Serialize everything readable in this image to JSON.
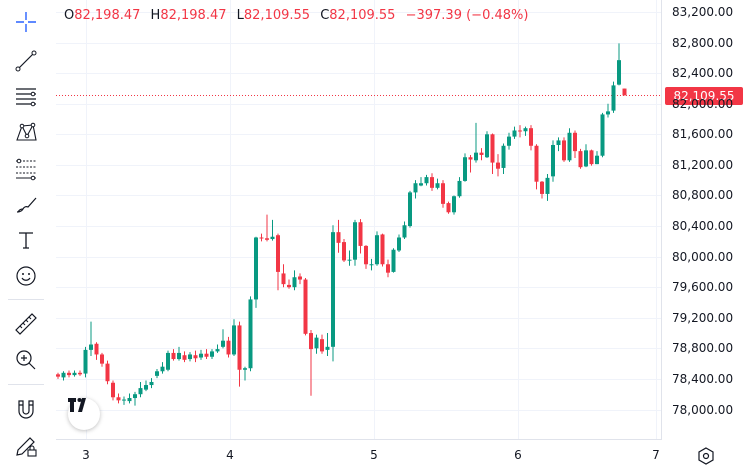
{
  "toolbar": {
    "tools": [
      {
        "name": "crosshair",
        "icon": "crosshair-icon"
      },
      {
        "name": "trend-line",
        "icon": "trend-line-icon"
      },
      {
        "name": "horizontal-lines",
        "icon": "horizontal-lines-icon"
      },
      {
        "name": "patterns",
        "icon": "pattern-icon"
      },
      {
        "name": "fib-retracement",
        "icon": "fib-retracement-icon"
      },
      {
        "name": "brush",
        "icon": "brush-icon"
      },
      {
        "name": "text",
        "icon": "text-icon"
      },
      {
        "name": "emoji",
        "icon": "smiley-icon"
      },
      {
        "name": "ruler",
        "icon": "ruler-icon"
      },
      {
        "name": "zoom-in",
        "icon": "zoom-in-icon"
      },
      {
        "name": "magnet",
        "icon": "magnet-icon"
      },
      {
        "name": "lock-drawing",
        "icon": "pencil-lock-icon"
      }
    ]
  },
  "legend": {
    "o_label": "O",
    "o_value": "82,198.47",
    "h_label": "H",
    "h_value": "82,198.47",
    "l_label": "L",
    "l_value": "82,109.55",
    "c_label": "C",
    "c_value": "82,109.55",
    "change": "−397.39 (−0.48%)"
  },
  "price_scale": {
    "ticks": [
      "83,200.00",
      "82,800.00",
      "82,400.00",
      "82,000.00",
      "81,600.00",
      "81,200.00",
      "80,800.00",
      "80,400.00",
      "80,000.00",
      "79,600.00",
      "79,200.00",
      "78,800.00",
      "78,400.00",
      "78,000.00"
    ],
    "last_price": "82,109.55"
  },
  "time_scale": {
    "ticks": [
      "3",
      "4",
      "5",
      "6",
      "7"
    ]
  },
  "colors": {
    "up": "#089981",
    "down": "#f23645",
    "grid": "#f0f3fa"
  },
  "chart_data": {
    "type": "candlestick",
    "y_range": [
      77800,
      83250
    ],
    "x_labels": [
      "3",
      "4",
      "5",
      "6",
      "7"
    ],
    "last_price": 82109.55,
    "candles": [
      [
        78460,
        78430,
        78480,
        78400
      ],
      [
        78420,
        78480,
        78500,
        78380
      ],
      [
        78480,
        78450,
        78510,
        78420
      ],
      [
        78450,
        78480,
        78510,
        78430
      ],
      [
        78480,
        78460,
        78510,
        78440
      ],
      [
        78470,
        78780,
        78820,
        78420
      ],
      [
        78780,
        78850,
        79150,
        78700
      ],
      [
        78860,
        78720,
        78880,
        78650
      ],
      [
        78720,
        78600,
        78740,
        78560
      ],
      [
        78600,
        78370,
        78640,
        78330
      ],
      [
        78350,
        78160,
        78380,
        78120
      ],
      [
        78160,
        78120,
        78210,
        78080
      ],
      [
        78120,
        78130,
        78170,
        78060
      ],
      [
        78110,
        78150,
        78210,
        78080
      ],
      [
        78150,
        78200,
        78230,
        78050
      ],
      [
        78200,
        78280,
        78360,
        78160
      ],
      [
        78260,
        78320,
        78380,
        78240
      ],
      [
        78320,
        78360,
        78410,
        78280
      ],
      [
        78440,
        78500,
        78530,
        78410
      ],
      [
        78500,
        78560,
        78620,
        78470
      ],
      [
        78520,
        78740,
        78770,
        78500
      ],
      [
        78740,
        78660,
        78790,
        78640
      ],
      [
        78660,
        78740,
        78820,
        78640
      ],
      [
        78710,
        78650,
        78760,
        78620
      ],
      [
        78660,
        78720,
        78750,
        78630
      ],
      [
        78710,
        78670,
        78770,
        78620
      ],
      [
        78680,
        78730,
        78780,
        78650
      ],
      [
        78730,
        78690,
        78790,
        78660
      ],
      [
        78690,
        78760,
        78790,
        78660
      ],
      [
        78760,
        78790,
        78850,
        78740
      ],
      [
        78820,
        78900,
        79050,
        78800
      ],
      [
        78900,
        78720,
        78950,
        78680
      ],
      [
        78720,
        79100,
        79180,
        78700
      ],
      [
        79100,
        78520,
        79150,
        78300
      ],
      [
        78520,
        78540,
        78560,
        78380
      ],
      [
        78540,
        79440,
        79480,
        78500
      ],
      [
        79440,
        80250,
        80260,
        79330
      ],
      [
        80250,
        80240,
        80300,
        80200
      ],
      [
        80240,
        80220,
        80550,
        80200
      ],
      [
        80230,
        80260,
        80480,
        80210
      ],
      [
        80280,
        79800,
        80300,
        79560
      ],
      [
        79780,
        79640,
        79900,
        79600
      ],
      [
        79630,
        79600,
        79700,
        79580
      ],
      [
        79600,
        79730,
        79820,
        79560
      ],
      [
        79740,
        79700,
        79780,
        79640
      ],
      [
        79700,
        78990,
        79720,
        78970
      ],
      [
        79000,
        78790,
        79040,
        78180
      ],
      [
        78800,
        78940,
        78980,
        78730
      ],
      [
        78920,
        78760,
        78980,
        78730
      ],
      [
        78780,
        78820,
        79000,
        78700
      ],
      [
        78820,
        80320,
        80410,
        78630
      ],
      [
        80320,
        80180,
        80480,
        80050
      ],
      [
        80190,
        79950,
        80230,
        79930
      ],
      [
        79950,
        79960,
        80080,
        79880
      ],
      [
        79960,
        80450,
        80480,
        79880
      ],
      [
        80450,
        80140,
        80490,
        80040
      ],
      [
        80140,
        79900,
        80150,
        79840
      ],
      [
        79890,
        79900,
        79970,
        79820
      ],
      [
        79900,
        80280,
        80330,
        79880
      ],
      [
        80290,
        79900,
        80300,
        79870
      ],
      [
        79900,
        79790,
        79960,
        79730
      ],
      [
        79800,
        80090,
        80110,
        79790
      ],
      [
        80080,
        80250,
        80290,
        80060
      ],
      [
        80250,
        80410,
        80460,
        80230
      ],
      [
        80400,
        80840,
        80860,
        80380
      ],
      [
        80840,
        80960,
        81000,
        80760
      ],
      [
        80930,
        80960,
        81040,
        80920
      ],
      [
        80960,
        81040,
        81070,
        80930
      ],
      [
        81040,
        80900,
        81090,
        80860
      ],
      [
        80900,
        80960,
        81020,
        80880
      ],
      [
        80960,
        80690,
        81000,
        80640
      ],
      [
        80700,
        80580,
        80720,
        80560
      ],
      [
        80580,
        80790,
        80800,
        80550
      ],
      [
        80790,
        80990,
        81040,
        80770
      ],
      [
        80990,
        81300,
        81350,
        80980
      ],
      [
        81300,
        81270,
        81330,
        81100
      ],
      [
        81260,
        81360,
        81750,
        81230
      ],
      [
        81360,
        81330,
        81420,
        81260
      ],
      [
        81300,
        81600,
        81640,
        81290
      ],
      [
        81600,
        81230,
        81610,
        81080
      ],
      [
        81230,
        81150,
        81340,
        81050
      ],
      [
        81160,
        81450,
        81480,
        81080
      ],
      [
        81450,
        81570,
        81620,
        81400
      ],
      [
        81570,
        81650,
        81700,
        81540
      ],
      [
        81650,
        81640,
        81720,
        81560
      ],
      [
        81640,
        81680,
        81700,
        81580
      ],
      [
        81680,
        81450,
        81720,
        81390
      ],
      [
        81450,
        80980,
        81470,
        80880
      ],
      [
        80980,
        80820,
        80990,
        80760
      ],
      [
        80820,
        81030,
        81080,
        80730
      ],
      [
        81050,
        81460,
        81520,
        80980
      ],
      [
        81460,
        81520,
        81560,
        81380
      ],
      [
        81520,
        81260,
        81560,
        81240
      ],
      [
        81260,
        81620,
        81680,
        81240
      ],
      [
        81620,
        81380,
        81650,
        81290
      ],
      [
        81380,
        81170,
        81410,
        81150
      ],
      [
        81180,
        81390,
        81470,
        81170
      ],
      [
        81390,
        81210,
        81400,
        81190
      ],
      [
        81210,
        81320,
        81380,
        81210
      ],
      [
        81320,
        81860,
        81880,
        81300
      ],
      [
        81860,
        81900,
        82000,
        81820
      ],
      [
        81910,
        82240,
        82290,
        81880
      ],
      [
        82250,
        82570,
        82790,
        82240
      ],
      [
        82198.47,
        82109.55,
        82198.47,
        82109.55
      ]
    ]
  }
}
